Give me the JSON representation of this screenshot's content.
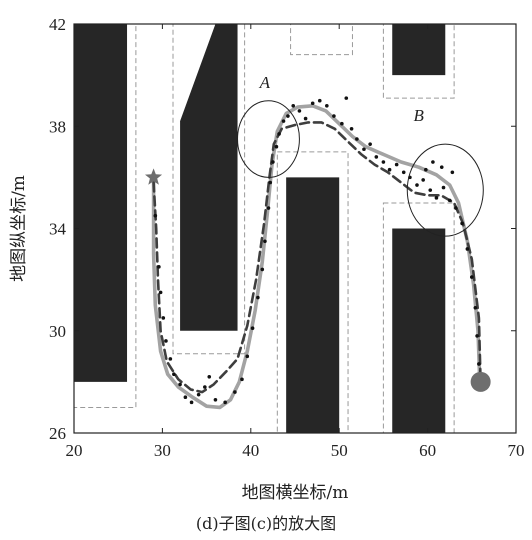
{
  "caption": "(d)子图(c)的放大图",
  "chart_data": {
    "type": "line",
    "title": "",
    "xlabel": "地图横坐标/m",
    "ylabel": "地图纵坐标/m",
    "xlim": [
      20,
      70
    ],
    "ylim": [
      26,
      42
    ],
    "xticks": [
      20,
      30,
      40,
      50,
      60,
      70
    ],
    "yticks": [
      26,
      30,
      34,
      38,
      42
    ],
    "grid": false,
    "obstacles": [
      {
        "x0": 20,
        "x1": 26,
        "y0": 28,
        "y1": 42
      },
      {
        "x0": 32,
        "x1": 38.5,
        "y0": 30,
        "y1": 38.2,
        "slant_top": {
          "x_left_top": 32,
          "x_right_top": 36,
          "y_top": 42
        }
      },
      {
        "x0": 36,
        "x1": 38.5,
        "y0": 38.2,
        "y1": 42
      },
      {
        "x0": 44,
        "x1": 50,
        "y0": 26,
        "y1": 36
      },
      {
        "x0": 56,
        "x1": 62,
        "y0": 40,
        "y1": 42
      },
      {
        "x0": 56,
        "x1": 62,
        "y0": 26,
        "y1": 34
      }
    ],
    "safety_margins": [
      {
        "x0": 20,
        "x1": 27,
        "y0": 27,
        "y1": 42
      },
      {
        "x0": 31.2,
        "x1": 39.3,
        "y0": 29.1,
        "y1": 42
      },
      {
        "x0": 43,
        "x1": 51,
        "y0": 26,
        "y1": 37
      },
      {
        "x0": 55,
        "x1": 63,
        "y0": 39.1,
        "y1": 42
      },
      {
        "x0": 55,
        "x1": 63,
        "y0": 26,
        "y1": 35
      },
      {
        "x0": 44.5,
        "x1": 51.5,
        "y0": 40.8,
        "y1": 42
      }
    ],
    "series": [
      {
        "style": "solid-gray",
        "color": "#a3a3a3",
        "points": [
          [
            29,
            36
          ],
          [
            29,
            33
          ],
          [
            29.2,
            31
          ],
          [
            29.8,
            29.2
          ],
          [
            30.6,
            28.3
          ],
          [
            31.8,
            27.8
          ],
          [
            33.4,
            27.4
          ],
          [
            35,
            27.05
          ],
          [
            36.5,
            27
          ],
          [
            37.7,
            27.3
          ],
          [
            38.7,
            28
          ],
          [
            39.6,
            29.2
          ],
          [
            40.5,
            30.8
          ],
          [
            41.3,
            32.7
          ],
          [
            41.9,
            34.7
          ],
          [
            42.4,
            36.5
          ],
          [
            43,
            37.8
          ],
          [
            44,
            38.5
          ],
          [
            45.3,
            38.75
          ],
          [
            47,
            38.8
          ],
          [
            48.5,
            38.6
          ],
          [
            50,
            38.1
          ],
          [
            51.5,
            37.6
          ],
          [
            53,
            37.2
          ],
          [
            55,
            36.9
          ],
          [
            57,
            36.6
          ],
          [
            59,
            36.4
          ],
          [
            61,
            36.1
          ],
          [
            62.5,
            35.7
          ],
          [
            63.5,
            35
          ],
          [
            64.5,
            33.5
          ],
          [
            65.2,
            31.8
          ],
          [
            65.7,
            30
          ],
          [
            65.9,
            28
          ]
        ]
      },
      {
        "style": "dashed-dark",
        "color": "#3e3e3e",
        "points": [
          [
            29,
            35.8
          ],
          [
            29.3,
            34
          ],
          [
            29.5,
            32
          ],
          [
            29.8,
            30
          ],
          [
            30.5,
            28.8
          ],
          [
            31.8,
            28.1
          ],
          [
            33.2,
            27.7
          ],
          [
            34.5,
            27.6
          ],
          [
            35.8,
            27.9
          ],
          [
            37.2,
            28.4
          ],
          [
            38.5,
            28.9
          ],
          [
            39.6,
            30.2
          ],
          [
            40.6,
            32
          ],
          [
            41.5,
            34.2
          ],
          [
            42.1,
            36
          ],
          [
            42.6,
            37.3
          ],
          [
            43.5,
            37.9
          ],
          [
            45,
            38.05
          ],
          [
            46.5,
            38.15
          ],
          [
            48,
            38.15
          ],
          [
            49.5,
            37.9
          ],
          [
            51,
            37.4
          ],
          [
            52.5,
            36.9
          ],
          [
            54,
            36.5
          ],
          [
            55.5,
            36.2
          ],
          [
            57,
            35.8
          ],
          [
            58.5,
            35.4
          ],
          [
            60,
            35.3
          ],
          [
            61.5,
            35.3
          ],
          [
            63,
            35
          ],
          [
            64,
            34.2
          ],
          [
            65,
            32.8
          ],
          [
            65.8,
            30.5
          ],
          [
            66,
            28
          ]
        ]
      }
    ],
    "scatter_points": [
      [
        29.2,
        34.5
      ],
      [
        29.6,
        32.5
      ],
      [
        29.8,
        31.5
      ],
      [
        30.1,
        30.5
      ],
      [
        30.4,
        29.6
      ],
      [
        30.9,
        28.9
      ],
      [
        31.3,
        28.3
      ],
      [
        32,
        27.9
      ],
      [
        32.6,
        27.4
      ],
      [
        33.3,
        27.2
      ],
      [
        34.1,
        27.5
      ],
      [
        34.8,
        27.8
      ],
      [
        35.3,
        28.2
      ],
      [
        36,
        27.3
      ],
      [
        37.1,
        27.2
      ],
      [
        38.2,
        27.6
      ],
      [
        39,
        28.1
      ],
      [
        39.6,
        29
      ],
      [
        40.2,
        30.1
      ],
      [
        40.8,
        31.3
      ],
      [
        41.3,
        32.4
      ],
      [
        41.6,
        33.5
      ],
      [
        42,
        34.8
      ],
      [
        42.2,
        35.8
      ],
      [
        42.5,
        36.6
      ],
      [
        42.9,
        37.2
      ],
      [
        43.2,
        37.7
      ],
      [
        43.7,
        38.2
      ],
      [
        44.2,
        38.4
      ],
      [
        44.8,
        38.8
      ],
      [
        45.5,
        38.6
      ],
      [
        46.2,
        38.3
      ],
      [
        47,
        38.9
      ],
      [
        47.8,
        39
      ],
      [
        48.6,
        38.8
      ],
      [
        49.4,
        38.4
      ],
      [
        50.3,
        38.1
      ],
      [
        50.8,
        39.1
      ],
      [
        51.4,
        37.9
      ],
      [
        52,
        37.5
      ],
      [
        52.8,
        37.1
      ],
      [
        53.5,
        37.3
      ],
      [
        54.2,
        36.8
      ],
      [
        55,
        36.6
      ],
      [
        55.7,
        36.3
      ],
      [
        56.5,
        36.5
      ],
      [
        57.3,
        36.2
      ],
      [
        58,
        36
      ],
      [
        58.8,
        35.7
      ],
      [
        59.5,
        35.9
      ],
      [
        60.3,
        35.5
      ],
      [
        61,
        35.2
      ],
      [
        61.8,
        35.6
      ],
      [
        62.5,
        35.1
      ],
      [
        63.2,
        34.8
      ],
      [
        63.9,
        34.2
      ],
      [
        64.5,
        33.2
      ],
      [
        65,
        32.1
      ],
      [
        65.4,
        30.9
      ],
      [
        65.6,
        29.8
      ],
      [
        65.8,
        28.7
      ],
      [
        59.8,
        36.3
      ],
      [
        60.6,
        36.6
      ],
      [
        61.6,
        36.4
      ],
      [
        62.8,
        36.2
      ]
    ],
    "start": {
      "x": 29,
      "y": 36,
      "marker": "star",
      "color": "#6e6e6e"
    },
    "goal": {
      "x": 66,
      "y": 28,
      "marker": "circle",
      "color": "#6e6e6e"
    },
    "annotations": [
      {
        "text": "A",
        "x": 41,
        "y": 39.5,
        "circle": {
          "cx": 42,
          "cy": 37.5,
          "rx": 3.5,
          "ry": 1.5
        }
      },
      {
        "text": "B",
        "x": 58.4,
        "y": 38.2,
        "circle": {
          "cx": 62,
          "cy": 35.5,
          "rx": 4.3,
          "ry": 1.8
        }
      }
    ]
  }
}
